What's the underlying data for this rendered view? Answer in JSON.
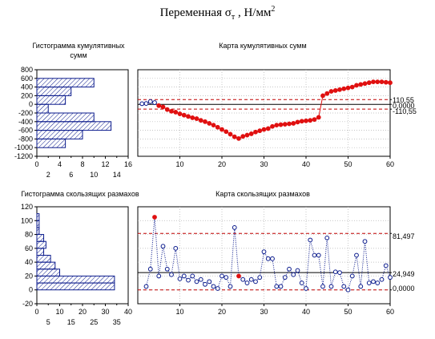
{
  "title": {
    "main": "Переменная σ",
    "sub": "т",
    "tail": " , Н/мм",
    "sup": "2"
  },
  "colors": {
    "bar_stroke": "#0a1a8c",
    "bar_hatch": "#0a1a8c",
    "red_marker": "#e01010",
    "blue_marker": "#0a1a8c",
    "control_line": "#c00000",
    "center_line": "#000000",
    "grid": "#b4b4b4"
  },
  "chart_data": [
    {
      "id": "cusum-hist",
      "type": "bar",
      "orientation": "horizontal",
      "title": "Гистограмма кумулятивных сумм",
      "y_ticks": [
        "800",
        "600",
        "400",
        "200",
        "0",
        "-200",
        "-400",
        "-600",
        "-800",
        "-1000",
        "-1200"
      ],
      "x_ticks_top": [
        "0",
        "4",
        "8",
        "12",
        "16"
      ],
      "x_ticks_bottom": [
        "2",
        "6",
        "10",
        "14"
      ],
      "xlim": [
        0,
        16
      ],
      "ylim": [
        -1200,
        800
      ],
      "bins": [
        {
          "from": 400,
          "to": 600,
          "count": 10
        },
        {
          "from": 200,
          "to": 400,
          "count": 6
        },
        {
          "from": 0,
          "to": 200,
          "count": 5
        },
        {
          "from": -200,
          "to": 0,
          "count": 2
        },
        {
          "from": -400,
          "to": -200,
          "count": 10
        },
        {
          "from": -600,
          "to": -400,
          "count": 13
        },
        {
          "from": -800,
          "to": -600,
          "count": 8
        },
        {
          "from": -1000,
          "to": -800,
          "count": 5
        }
      ]
    },
    {
      "id": "cusum-chart",
      "type": "line",
      "title": "Карта кумулятивных сумм",
      "x_ticks": [
        "10",
        "20",
        "30",
        "40",
        "50",
        "60"
      ],
      "xlim": [
        0,
        60
      ],
      "ylim": [
        -1200,
        800
      ],
      "control_labels": {
        "ucl": "110,55",
        "cl": "0,0000",
        "lcl": "-110,55"
      },
      "control_values": {
        "ucl": 110.55,
        "cl": 0,
        "lcl": -110.55
      },
      "x": [
        1,
        2,
        3,
        4,
        5,
        6,
        7,
        8,
        9,
        10,
        11,
        12,
        13,
        14,
        15,
        16,
        17,
        18,
        19,
        20,
        21,
        22,
        23,
        24,
        25,
        26,
        27,
        28,
        29,
        30,
        31,
        32,
        33,
        34,
        35,
        36,
        37,
        38,
        39,
        40,
        41,
        42,
        43,
        44,
        45,
        46,
        47,
        48,
        49,
        50,
        51,
        52,
        53,
        54,
        55,
        56,
        57,
        58,
        59,
        60
      ],
      "values": [
        15,
        20,
        65,
        40,
        -30,
        -60,
        -120,
        -160,
        -180,
        -220,
        -250,
        -280,
        -310,
        -330,
        -370,
        -400,
        -440,
        -480,
        -530,
        -580,
        -630,
        -690,
        -750,
        -790,
        -740,
        -710,
        -680,
        -640,
        -610,
        -580,
        -560,
        -510,
        -480,
        -470,
        -460,
        -450,
        -440,
        -410,
        -390,
        -380,
        -370,
        -350,
        -300,
        200,
        250,
        300,
        320,
        340,
        360,
        380,
        400,
        440,
        460,
        480,
        500,
        520,
        520,
        520,
        510,
        500
      ],
      "red_points_from": 4
    },
    {
      "id": "range-hist",
      "type": "bar",
      "orientation": "horizontal",
      "title": "Гистограмма скользящих размахов",
      "y_ticks": [
        "120",
        "100",
        "80",
        "60",
        "40",
        "20",
        "0",
        "-20"
      ],
      "x_ticks_top": [
        "0",
        "10",
        "20",
        "30",
        "40"
      ],
      "x_ticks_bottom": [
        "5",
        "15",
        "25",
        "35"
      ],
      "xlim": [
        0,
        40
      ],
      "ylim": [
        -20,
        120
      ],
      "bins": [
        {
          "from": 100,
          "to": 110,
          "count": 1
        },
        {
          "from": 90,
          "to": 100,
          "count": 1
        },
        {
          "from": 80,
          "to": 90,
          "count": 1
        },
        {
          "from": 70,
          "to": 80,
          "count": 3
        },
        {
          "from": 60,
          "to": 70,
          "count": 4
        },
        {
          "from": 50,
          "to": 60,
          "count": 3
        },
        {
          "from": 40,
          "to": 50,
          "count": 6
        },
        {
          "from": 30,
          "to": 40,
          "count": 8
        },
        {
          "from": 20,
          "to": 30,
          "count": 10
        },
        {
          "from": 10,
          "to": 20,
          "count": 34
        },
        {
          "from": 0,
          "to": 10,
          "count": 34
        }
      ]
    },
    {
      "id": "range-chart",
      "type": "line",
      "title": "Карта скользящих размахов",
      "x_ticks": [
        "10",
        "20",
        "30",
        "40",
        "50",
        "60"
      ],
      "xlim": [
        0,
        60
      ],
      "ylim": [
        -20,
        120
      ],
      "control_labels": {
        "ucl": "81,497",
        "cl": "24,949",
        "lcl": "0,0000"
      },
      "control_values": {
        "ucl": 81.497,
        "cl": 24.949,
        "lcl": 0
      },
      "x": [
        2,
        3,
        4,
        5,
        6,
        7,
        8,
        9,
        10,
        11,
        12,
        13,
        14,
        15,
        16,
        17,
        18,
        19,
        20,
        21,
        22,
        23,
        24,
        25,
        26,
        27,
        28,
        29,
        30,
        31,
        32,
        33,
        34,
        35,
        36,
        37,
        38,
        39,
        40,
        41,
        42,
        43,
        44,
        45,
        46,
        47,
        48,
        49,
        50,
        51,
        52,
        53,
        54,
        55,
        56,
        57,
        58,
        59,
        60
      ],
      "values": [
        5,
        30,
        105,
        20,
        63,
        30,
        22,
        60,
        16,
        20,
        14,
        20,
        12,
        15,
        8,
        12,
        5,
        2,
        20,
        18,
        5,
        90,
        20,
        15,
        10,
        15,
        12,
        18,
        55,
        45,
        45,
        5,
        5,
        18,
        30,
        22,
        28,
        10,
        2,
        72,
        50,
        50,
        5,
        75,
        5,
        26,
        25,
        5,
        0,
        20,
        50,
        5,
        70,
        10,
        12,
        10,
        15,
        35,
        18
      ],
      "out_of_control": [
        4,
        24
      ]
    }
  ]
}
